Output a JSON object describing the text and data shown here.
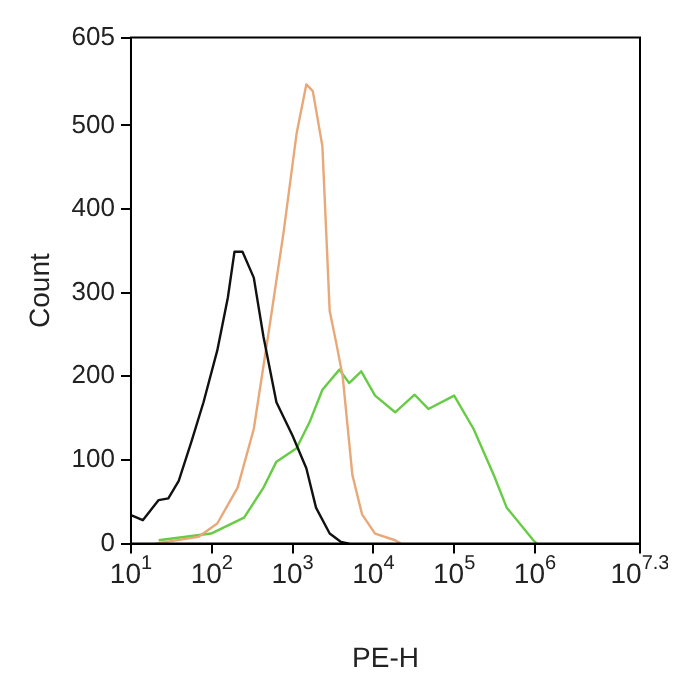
{
  "chart_data": {
    "type": "line",
    "xlabel": "PE-H",
    "ylabel": "Count",
    "log": "x",
    "grid": false,
    "legend": false,
    "marker": "none",
    "line_style": "solid",
    "xlim": [
      10,
      19952623
    ],
    "ylim": [
      0,
      605
    ],
    "xticks": [
      {
        "value": 10,
        "label": "10$^{1}$"
      },
      {
        "value": 100,
        "label": "10$^{2}$"
      },
      {
        "value": 1000,
        "label": "10$^{3}$"
      },
      {
        "value": 10000,
        "label": "10$^{4}$"
      },
      {
        "value": 100000,
        "label": "10$^{5}$"
      },
      {
        "value": 1000000,
        "label": "10$^{6}$"
      },
      {
        "value": 19952623,
        "label": "10$^{7.3}$"
      }
    ],
    "yticks": [
      0,
      100,
      200,
      300,
      400,
      500,
      605
    ],
    "series": [
      {
        "color": "#111111",
        "x": [
          10,
          14,
          22,
          29,
          39,
          56,
          79,
          117,
          158,
          191,
          240,
          331,
          437,
          631,
          1000,
          1480,
          1950,
          2880,
          3980,
          5010
        ],
        "values": [
          34,
          28,
          52,
          54,
          75,
          122,
          169,
          231,
          294,
          349,
          349,
          318,
          247,
          169,
          129,
          90,
          43,
          12,
          2,
          0
        ]
      },
      {
        "color": "#e8a878",
        "x": [
          20,
          68,
          117,
          209,
          331,
          525,
          776,
          1120,
          1480,
          1780,
          2340,
          2880,
          3470,
          4170,
          5500,
          7240,
          10500,
          18600,
          21900
        ],
        "values": [
          0,
          8,
          24,
          67,
          137,
          263,
          373,
          490,
          549,
          541,
          475,
          278,
          240,
          200,
          82,
          35,
          12,
          4,
          0
        ]
      },
      {
        "color": "#66cc44",
        "x": [
          22,
          98,
          251,
          437,
          631,
          1120,
          1620,
          2340,
          3800,
          5010,
          7080,
          10500,
          18600,
          32400,
          47900,
          100000,
          174000,
          309000,
          447000,
          955000,
          1050000
        ],
        "values": [
          4,
          12,
          31,
          67,
          98,
          114,
          145,
          184,
          208,
          192,
          206,
          177,
          157,
          178,
          161,
          177,
          137,
          82,
          43,
          4,
          0
        ]
      }
    ]
  }
}
